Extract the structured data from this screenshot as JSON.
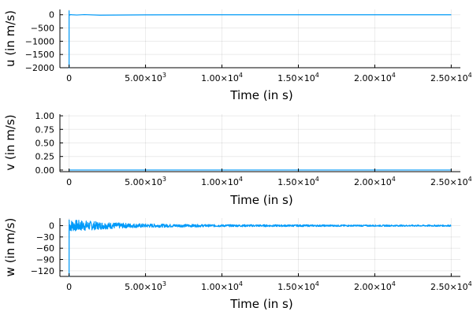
{
  "chart_data": [
    {
      "type": "line",
      "xlabel": "Time (in s)",
      "ylabel": "u (in m/s)",
      "xlim": [
        -600,
        25600
      ],
      "ylim": [
        -2000,
        200
      ],
      "grid": true,
      "color": "#009af9",
      "xticks": [
        {
          "value": 0,
          "label": "0"
        },
        {
          "value": 5000,
          "mant": "5.00×10",
          "exp": "3"
        },
        {
          "value": 10000,
          "mant": "1.00×10",
          "exp": "4"
        },
        {
          "value": 15000,
          "mant": "1.50×10",
          "exp": "4"
        },
        {
          "value": 20000,
          "mant": "2.00×10",
          "exp": "4"
        },
        {
          "value": 25000,
          "mant": "2.50×10",
          "exp": "4"
        }
      ],
      "yticks": [
        {
          "value": 0,
          "label": "0"
        },
        {
          "value": -500,
          "label": "−500"
        },
        {
          "value": -1000,
          "label": "−1000"
        },
        {
          "value": -1500,
          "label": "−1500"
        },
        {
          "value": -2000,
          "label": "−2000"
        }
      ],
      "series": [
        {
          "x": [
            0,
            0,
            1,
            2,
            5,
            10,
            25,
            50,
            100,
            200,
            500,
            1000,
            2000,
            5000,
            10000,
            15000,
            20000,
            25000
          ],
          "y": [
            0,
            -2000,
            150,
            -30,
            10,
            -5,
            5,
            -10,
            5,
            0,
            -10,
            5,
            -15,
            -5,
            0,
            0,
            0,
            0
          ]
        }
      ]
    },
    {
      "type": "line",
      "xlabel": "Time (in s)",
      "ylabel": "v (in m/s)",
      "xlim": [
        -600,
        25600
      ],
      "ylim": [
        -0.03,
        1.03
      ],
      "grid": true,
      "color": "#009af9",
      "xticks": [
        {
          "value": 0,
          "label": "0"
        },
        {
          "value": 5000,
          "mant": "5.00×10",
          "exp": "3"
        },
        {
          "value": 10000,
          "mant": "1.00×10",
          "exp": "4"
        },
        {
          "value": 15000,
          "mant": "1.50×10",
          "exp": "4"
        },
        {
          "value": 20000,
          "mant": "2.00×10",
          "exp": "4"
        },
        {
          "value": 25000,
          "mant": "2.50×10",
          "exp": "4"
        }
      ],
      "yticks": [
        {
          "value": 1.0,
          "label": "1.00"
        },
        {
          "value": 0.75,
          "label": "0.75"
        },
        {
          "value": 0.5,
          "label": "0.50"
        },
        {
          "value": 0.25,
          "label": "0.25"
        },
        {
          "value": 0.0,
          "label": "0.00"
        }
      ],
      "series": [
        {
          "x": [
            0,
            25000
          ],
          "y": [
            0,
            0
          ]
        }
      ]
    },
    {
      "type": "line",
      "xlabel": "Time (in s)",
      "ylabel": "w (in m/s)",
      "xlim": [
        -600,
        25600
      ],
      "ylim": [
        -135,
        20
      ],
      "grid": true,
      "color": "#009af9",
      "xticks": [
        {
          "value": 0,
          "label": "0"
        },
        {
          "value": 5000,
          "mant": "5.00×10",
          "exp": "3"
        },
        {
          "value": 10000,
          "mant": "1.00×10",
          "exp": "4"
        },
        {
          "value": 15000,
          "mant": "1.50×10",
          "exp": "4"
        },
        {
          "value": 20000,
          "mant": "2.00×10",
          "exp": "4"
        },
        {
          "value": 25000,
          "mant": "2.50×10",
          "exp": "4"
        }
      ],
      "yticks": [
        {
          "value": 0,
          "label": "0"
        },
        {
          "value": -30,
          "label": "−30"
        },
        {
          "value": -60,
          "label": "−60"
        },
        {
          "value": -90,
          "label": "−90"
        },
        {
          "value": -120,
          "label": "−120"
        }
      ],
      "envelope": {
        "x": [
          0,
          100,
          500,
          1000,
          1500,
          2000,
          3000,
          4000,
          5000,
          7000,
          10000,
          15000,
          20000,
          25000
        ],
        "amp": [
          18,
          16,
          15,
          14,
          12,
          10,
          8,
          6,
          5,
          4,
          3,
          2.5,
          2,
          2
        ]
      },
      "series": [
        {
          "x": [
            0,
            0,
            5,
            20
          ],
          "y": [
            0,
            -135,
            15,
            -8
          ]
        }
      ]
    }
  ]
}
